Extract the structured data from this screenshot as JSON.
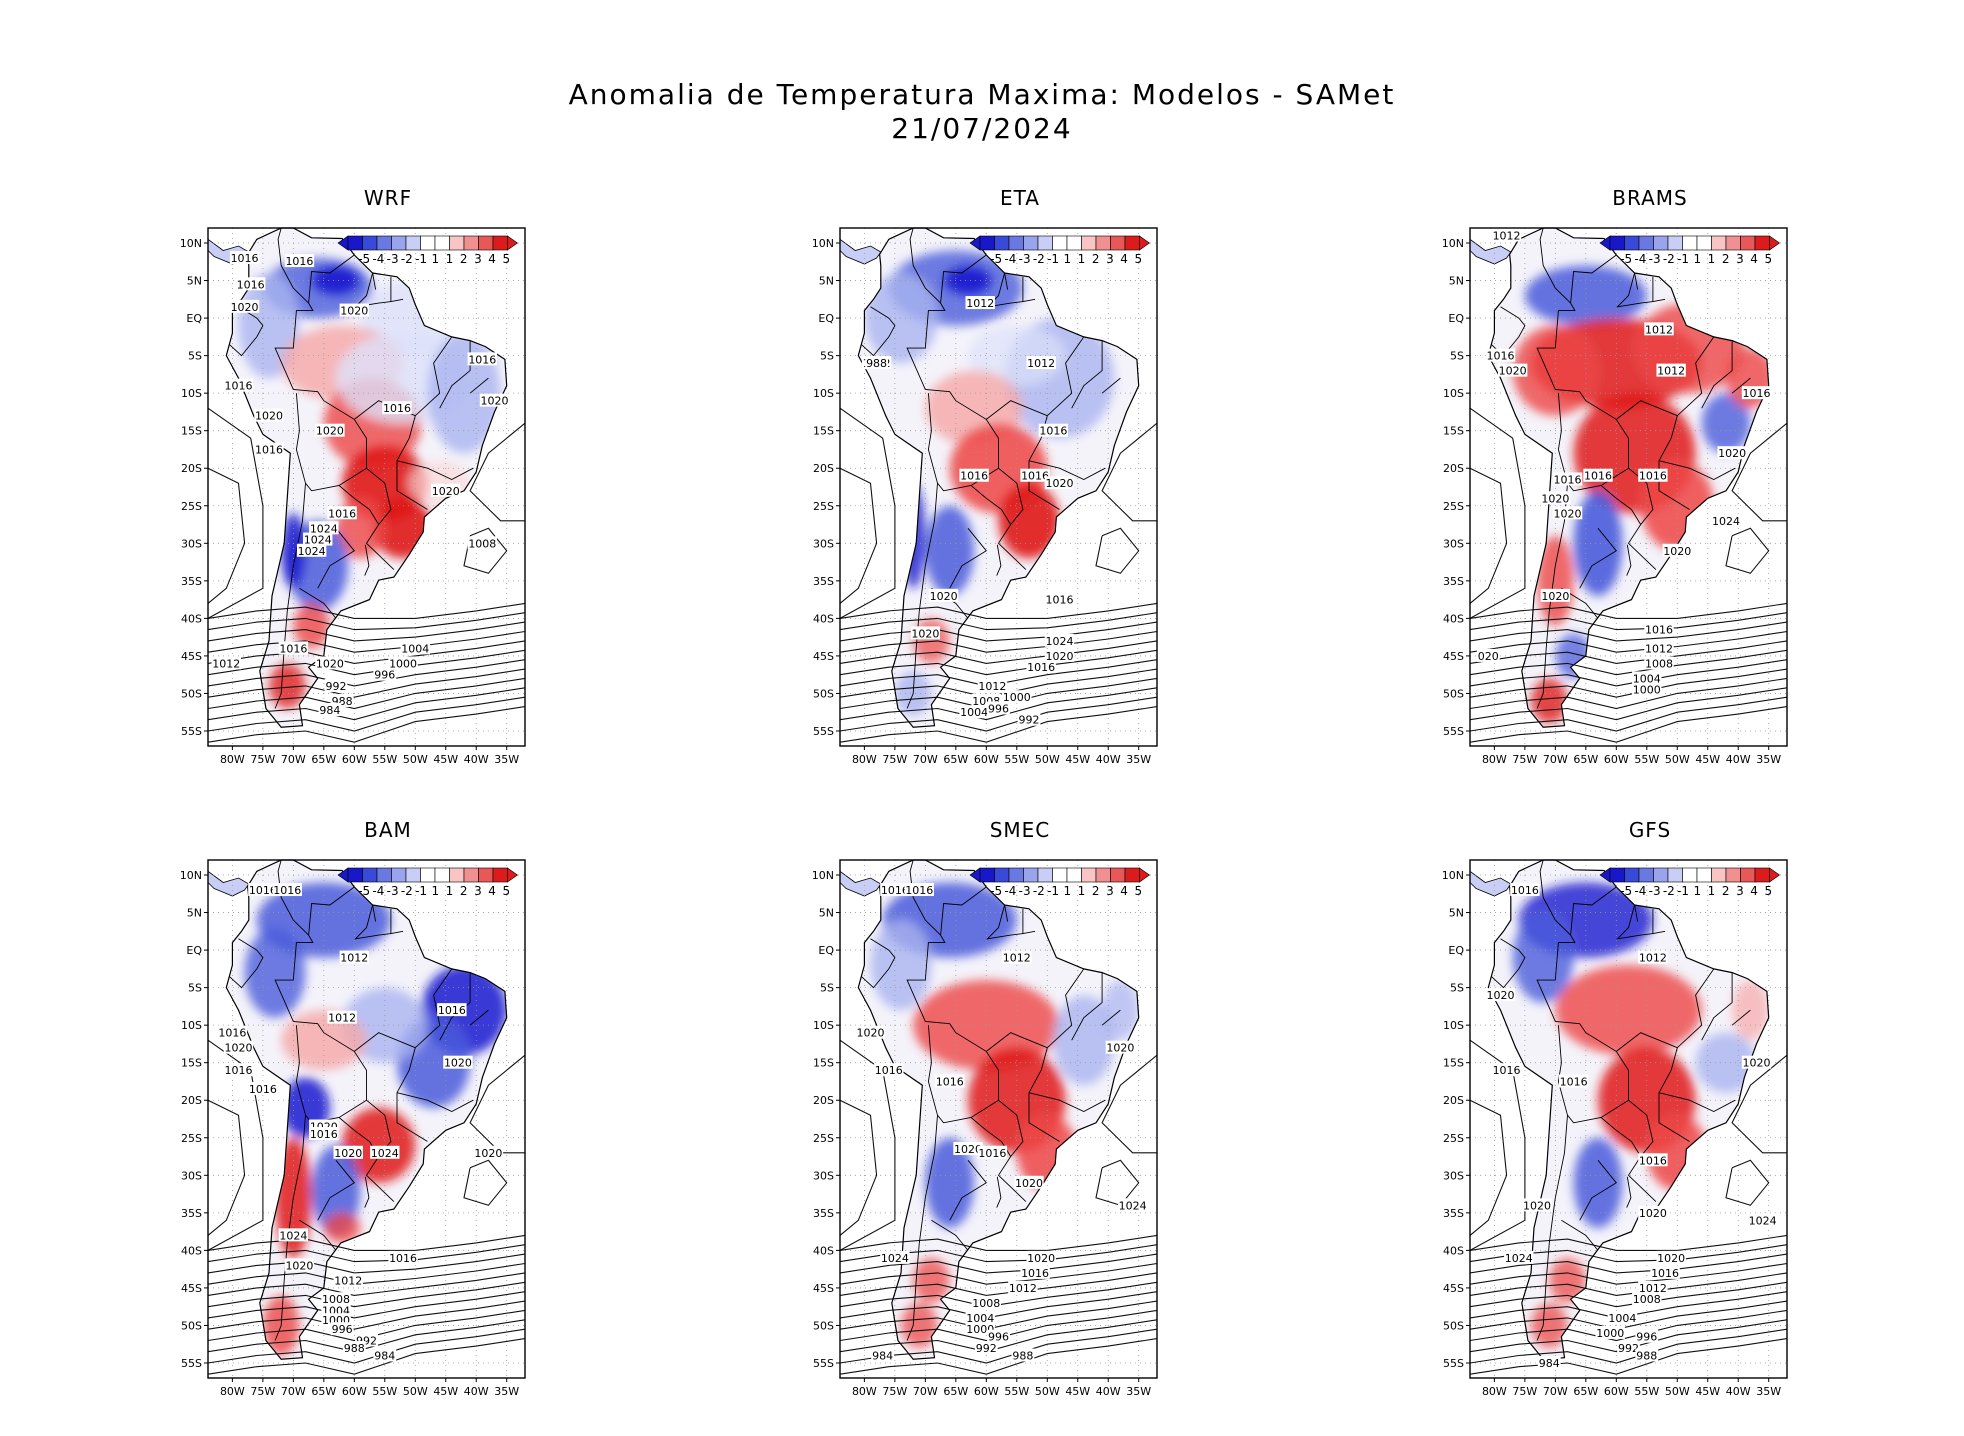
{
  "title": {
    "line1": "Anomalia de Temperatura Maxima: Modelos - SAMet",
    "line2": "21/07/2024"
  },
  "colorbar": {
    "labels": [
      "-5",
      "-4",
      "-3",
      "-2",
      "-1",
      "1",
      "1",
      "2",
      "3",
      "4",
      "5"
    ],
    "colors": [
      "#1818c8",
      "#3a4ad8",
      "#6a78e2",
      "#9aa4ec",
      "#c8cef6",
      "#ffffff",
      "#ffffff",
      "#f8c4c4",
      "#f09090",
      "#e85858",
      "#dc1c1c"
    ]
  },
  "axes": {
    "lat_ticks": [
      "10N",
      "5N",
      "EQ",
      "5S",
      "10S",
      "15S",
      "20S",
      "25S",
      "30S",
      "35S",
      "40S",
      "45S",
      "50S",
      "55S"
    ],
    "lon_ticks": [
      "80W",
      "75W",
      "70W",
      "65W",
      "60W",
      "55W",
      "50W",
      "45W",
      "40W",
      "35W"
    ]
  },
  "panels": [
    {
      "name": "WRF",
      "isobar_labels": [
        "1016",
        "1016",
        "1016",
        "1020",
        "1020",
        "1016",
        "1016",
        "1020",
        "1016",
        "1020",
        "1016",
        "1020",
        "1016",
        "1020",
        "1024",
        "1024",
        "1024",
        "1020",
        "1016",
        "1012",
        "1008",
        "1004",
        "1000",
        "996",
        "992",
        "988",
        "984"
      ]
    },
    {
      "name": "ETA",
      "isobar_labels": [
        "1012",
        "1012",
        "1012",
        "1016",
        "1016",
        "1016",
        "1020",
        "1016",
        "1020",
        "1020",
        "1024",
        "1020",
        "1016",
        "1012",
        "1008",
        "1004",
        "1000",
        "996",
        "992",
        "988"
      ]
    },
    {
      "name": "BRAMS",
      "isobar_labels": [
        "1012",
        "1012",
        "1016",
        "1020",
        "1012",
        "1016",
        "1020",
        "1016",
        "1016",
        "1016",
        "1020",
        "1020",
        "1020",
        "1020",
        "1024",
        "020",
        "1016",
        "1012",
        "1008",
        "1004",
        "1000"
      ]
    },
    {
      "name": "BAM",
      "isobar_labels": [
        "1016",
        "1016",
        "1012",
        "1012",
        "1016",
        "1020",
        "1016",
        "1020",
        "1016",
        "1016",
        "1020",
        "1016",
        "1020",
        "1024",
        "1020",
        "1024",
        "1020",
        "1016",
        "1012",
        "1008",
        "1004",
        "1000",
        "996",
        "992",
        "988",
        "984"
      ]
    },
    {
      "name": "SMEC",
      "isobar_labels": [
        "1016",
        "1016",
        "1012",
        "1020",
        "1016",
        "1016",
        "1020",
        "1020",
        "1016",
        "1020",
        "1024",
        "1024",
        "1020",
        "1016",
        "1012",
        "1008",
        "1004",
        "1000",
        "996",
        "992",
        "988",
        "984"
      ]
    },
    {
      "name": "GFS",
      "isobar_labels": [
        "1016",
        "1012",
        "1020",
        "1016",
        "1016",
        "1020",
        "1016",
        "1020",
        "1020",
        "1024",
        "1024",
        "1020",
        "1016",
        "1012",
        "1008",
        "1004",
        "1000",
        "996",
        "992",
        "988",
        "984"
      ]
    }
  ]
}
